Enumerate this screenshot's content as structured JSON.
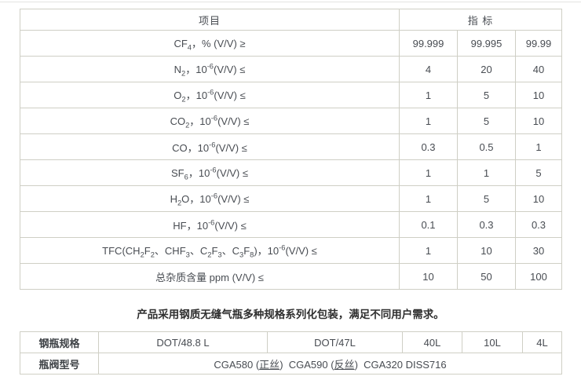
{
  "colors": {
    "table_border": "#cfcfc5",
    "table_text": "#484c52",
    "note_text": "#2f2f2f",
    "background": "#ffffff"
  },
  "spec_table": {
    "header": {
      "item": "项目",
      "spec": "指 标"
    },
    "rows": [
      {
        "label_html": "CF<sub>4</sub>，% (V/V) ≥",
        "values": [
          "99.999",
          "99.995",
          "99.99"
        ]
      },
      {
        "label_html": "N<sub>2</sub>，10<sup>-6</sup>(V/V) ≤",
        "values": [
          "4",
          "20",
          "40"
        ]
      },
      {
        "label_html": "O<sub>2</sub>，10<sup>-6</sup>(V/V) ≤",
        "values": [
          "1",
          "5",
          "10"
        ]
      },
      {
        "label_html": "CO<sub>2</sub>，10<sup>-6</sup>(V/V) ≤",
        "values": [
          "1",
          "5",
          "10"
        ]
      },
      {
        "label_html": "CO，10<sup>-6</sup>(V/V) ≤",
        "values": [
          "0.3",
          "0.5",
          "1"
        ]
      },
      {
        "label_html": "SF<sub>6</sub>，10<sup>-6</sup>(V/V) ≤",
        "values": [
          "1",
          "1",
          "5"
        ]
      },
      {
        "label_html": "H<sub>2</sub>O，10<sup>-6</sup>(V/V) ≤",
        "values": [
          "1",
          "5",
          "10"
        ]
      },
      {
        "label_html": "HF，10<sup>-6</sup>(V/V) ≤",
        "values": [
          "0.1",
          "0.3",
          "0.3"
        ]
      },
      {
        "label_html": "TFC(CH<sub>2</sub>F<sub>2</sub>、CHF<sub>3</sub>、C<sub>2</sub>F<sub>3</sub>、C<sub>3</sub>F<sub>8</sub>)，10<sup>-6</sup>(V/V) ≤",
        "values": [
          "1",
          "10",
          "30"
        ]
      },
      {
        "label_html": "总杂质含量 ppm (V/V) ≤",
        "values": [
          "10",
          "50",
          "100"
        ]
      }
    ]
  },
  "note": "产品采用钢质无缝气瓶多种规格系列化包装，满足不同用户需求。",
  "package_table": {
    "cylinder_row": {
      "label": "钢瓶规格",
      "cells": [
        "DOT/48.8 L",
        "DOT/47L",
        "40L",
        "10L",
        "4L"
      ]
    },
    "valve_row": {
      "label": "瓶阀型号",
      "value_html": "CGA580 (<u>正丝</u>)&nbsp;&nbsp;CGA590 (<u>反丝</u>)&nbsp;&nbsp;CGA320 DISS716"
    }
  }
}
